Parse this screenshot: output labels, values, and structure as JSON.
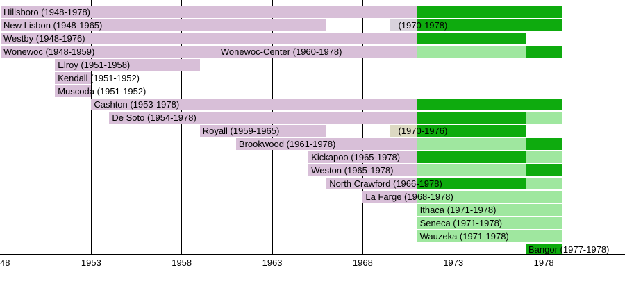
{
  "chart_data": {
    "type": "bar",
    "variant": "horizontal-gantt-timeline",
    "title": "Conference membership timeline (1948-1978)",
    "xlabel": "",
    "ylabel": "",
    "xlim": [
      1948,
      1979
    ],
    "grid": "vertical-lines-behind-bars",
    "legend_position": "none",
    "colors": {
      "thistle": "#D8BFD8",
      "green": "#0EAB0E",
      "lightgreen": "#9FE79F",
      "silver": "#D8D2DC",
      "tan": "#DCD9C2",
      "text": "#000000",
      "gridline": "#000000",
      "background": "#FFFFFF"
    },
    "axis": {
      "ticks": [
        {
          "year": 1948,
          "label": "48",
          "align": "left"
        },
        {
          "year": 1953,
          "label": "1953",
          "align": "center"
        },
        {
          "year": 1958,
          "label": "1958",
          "align": "center"
        },
        {
          "year": 1963,
          "label": "1963",
          "align": "center"
        },
        {
          "year": 1968,
          "label": "1968",
          "align": "center"
        },
        {
          "year": 1973,
          "label": "1973",
          "align": "center"
        },
        {
          "year": 1978,
          "label": "1978",
          "align": "center"
        }
      ]
    },
    "rows": [
      {
        "name": "Hillsboro",
        "labels": [
          {
            "text": "Hillsboro (1948-1978)",
            "year": 1948,
            "pad": 4
          }
        ],
        "segments": [
          {
            "from": 1948,
            "to": 1971,
            "color": "thistle"
          },
          {
            "from": 1971,
            "to": 1979,
            "color": "green"
          }
        ]
      },
      {
        "name": "New Lisbon",
        "labels": [
          {
            "text": "New Lisbon (1948-1965)",
            "year": 1948,
            "pad": 4
          },
          {
            "text": "(1970-1978)",
            "year": 1969.5,
            "pad": 12
          }
        ],
        "segments": [
          {
            "from": 1948,
            "to": 1966,
            "color": "thistle"
          },
          {
            "from": 1969.5,
            "to": 1971,
            "color": "silver"
          },
          {
            "from": 1971,
            "to": 1979,
            "color": "green"
          }
        ]
      },
      {
        "name": "Westby",
        "labels": [
          {
            "text": "Westby (1948-1976)",
            "year": 1948,
            "pad": 4
          }
        ],
        "segments": [
          {
            "from": 1948,
            "to": 1971,
            "color": "thistle"
          },
          {
            "from": 1971,
            "to": 1977,
            "color": "green"
          }
        ]
      },
      {
        "name": "Wonewoc / Wonewoc-Center",
        "labels": [
          {
            "text": "Wonewoc (1948-1959)",
            "year": 1948,
            "pad": 4
          },
          {
            "text": "Wonewoc-Center (1960-1978)",
            "year": 1960,
            "pad": 4
          }
        ],
        "segments": [
          {
            "from": 1948,
            "to": 1971,
            "color": "thistle"
          },
          {
            "from": 1971,
            "to": 1977,
            "color": "lightgreen"
          },
          {
            "from": 1977,
            "to": 1979,
            "color": "green"
          }
        ]
      },
      {
        "name": "Elroy",
        "labels": [
          {
            "text": "Elroy (1951-1958)",
            "year": 1951,
            "pad": 4
          }
        ],
        "segments": [
          {
            "from": 1951,
            "to": 1959,
            "color": "thistle"
          }
        ]
      },
      {
        "name": "Kendall",
        "labels": [
          {
            "text": "Kendall (1951-1952)",
            "year": 1951,
            "pad": 4
          }
        ],
        "segments": [
          {
            "from": 1951,
            "to": 1953,
            "color": "thistle"
          }
        ]
      },
      {
        "name": "Muscoda",
        "labels": [
          {
            "text": "Muscoda (1951-1952)",
            "year": 1951,
            "pad": 4
          }
        ],
        "segments": [
          {
            "from": 1951,
            "to": 1953,
            "color": "thistle"
          }
        ]
      },
      {
        "name": "Cashton",
        "labels": [
          {
            "text": "Cashton (1953-1978)",
            "year": 1953,
            "pad": 4
          }
        ],
        "segments": [
          {
            "from": 1953,
            "to": 1971,
            "color": "thistle"
          },
          {
            "from": 1971,
            "to": 1979,
            "color": "green"
          }
        ]
      },
      {
        "name": "De Soto",
        "labels": [
          {
            "text": "De Soto (1954-1978)",
            "year": 1954,
            "pad": 4
          }
        ],
        "segments": [
          {
            "from": 1954,
            "to": 1971,
            "color": "thistle"
          },
          {
            "from": 1971,
            "to": 1977,
            "color": "green"
          },
          {
            "from": 1977,
            "to": 1979,
            "color": "lightgreen"
          }
        ]
      },
      {
        "name": "Royall",
        "labels": [
          {
            "text": "Royall (1959-1965)",
            "year": 1959,
            "pad": 4
          },
          {
            "text": "(1970-1976)",
            "year": 1969.5,
            "pad": 12
          }
        ],
        "segments": [
          {
            "from": 1959,
            "to": 1966,
            "color": "thistle"
          },
          {
            "from": 1969.5,
            "to": 1971,
            "color": "tan"
          },
          {
            "from": 1971,
            "to": 1977,
            "color": "green"
          }
        ]
      },
      {
        "name": "Brookwood",
        "labels": [
          {
            "text": "Brookwood (1961-1978)",
            "year": 1961,
            "pad": 4
          }
        ],
        "segments": [
          {
            "from": 1961,
            "to": 1971,
            "color": "thistle"
          },
          {
            "from": 1971,
            "to": 1977,
            "color": "lightgreen"
          },
          {
            "from": 1977,
            "to": 1979,
            "color": "green"
          }
        ]
      },
      {
        "name": "Kickapoo",
        "labels": [
          {
            "text": "Kickapoo (1965-1978)",
            "year": 1965,
            "pad": 4
          }
        ],
        "segments": [
          {
            "from": 1965,
            "to": 1971,
            "color": "thistle"
          },
          {
            "from": 1971,
            "to": 1977,
            "color": "green"
          },
          {
            "from": 1977,
            "to": 1979,
            "color": "lightgreen"
          }
        ]
      },
      {
        "name": "Weston",
        "labels": [
          {
            "text": "Weston (1965-1978)",
            "year": 1965,
            "pad": 4
          }
        ],
        "segments": [
          {
            "from": 1965,
            "to": 1971,
            "color": "thistle"
          },
          {
            "from": 1971,
            "to": 1977,
            "color": "lightgreen"
          },
          {
            "from": 1977,
            "to": 1979,
            "color": "green"
          }
        ]
      },
      {
        "name": "North Crawford",
        "labels": [
          {
            "text": "North Crawford (1966-1978)",
            "year": 1966,
            "pad": 4
          }
        ],
        "segments": [
          {
            "from": 1966,
            "to": 1971,
            "color": "thistle"
          },
          {
            "from": 1971,
            "to": 1977,
            "color": "green"
          },
          {
            "from": 1977,
            "to": 1979,
            "color": "lightgreen"
          }
        ]
      },
      {
        "name": "La Farge",
        "labels": [
          {
            "text": "La Farge (1968-1978)",
            "year": 1968,
            "pad": 4
          }
        ],
        "segments": [
          {
            "from": 1968,
            "to": 1971,
            "color": "thistle"
          },
          {
            "from": 1971,
            "to": 1979,
            "color": "lightgreen"
          }
        ]
      },
      {
        "name": "Ithaca",
        "labels": [
          {
            "text": "Ithaca (1971-1978)",
            "year": 1971,
            "pad": 4
          }
        ],
        "segments": [
          {
            "from": 1971,
            "to": 1979,
            "color": "lightgreen"
          }
        ]
      },
      {
        "name": "Seneca",
        "labels": [
          {
            "text": "Seneca (1971-1978)",
            "year": 1971,
            "pad": 4
          }
        ],
        "segments": [
          {
            "from": 1971,
            "to": 1979,
            "color": "lightgreen"
          }
        ]
      },
      {
        "name": "Wauzeka",
        "labels": [
          {
            "text": "Wauzeka (1971-1978)",
            "year": 1971,
            "pad": 4
          }
        ],
        "segments": [
          {
            "from": 1971,
            "to": 1979,
            "color": "lightgreen"
          }
        ]
      },
      {
        "name": "Bangor",
        "labels": [
          {
            "text": "Bangor (1977-1978)",
            "year": 1977,
            "pad": 4
          }
        ],
        "segments": [
          {
            "from": 1977,
            "to": 1979,
            "color": "green"
          }
        ]
      }
    ]
  }
}
